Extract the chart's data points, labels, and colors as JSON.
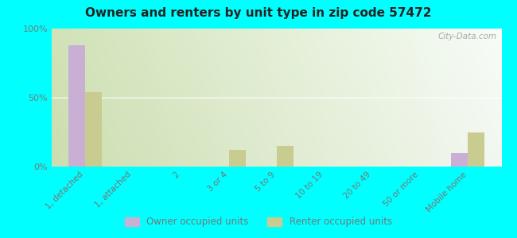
{
  "title": "Owners and renters by unit type in zip code 57472",
  "categories": [
    "1, detached",
    "1, attached",
    "2",
    "3 or 4",
    "5 to 9",
    "10 to 19",
    "20 to 49",
    "50 or more",
    "Mobile home"
  ],
  "owner_values": [
    88,
    0,
    0,
    0,
    0,
    0,
    0,
    0,
    10
  ],
  "renter_values": [
    54,
    0,
    0,
    12,
    15,
    0,
    0,
    0,
    25
  ],
  "owner_color": "#c9afd4",
  "renter_color": "#c8cc90",
  "background_color": "#00ffff",
  "ylim": [
    0,
    100
  ],
  "yticks": [
    0,
    50,
    100
  ],
  "ytick_labels": [
    "0%",
    "50%",
    "100%"
  ],
  "bar_width": 0.35,
  "legend_owner": "Owner occupied units",
  "legend_renter": "Renter occupied units",
  "watermark": "City-Data.com",
  "grid_color": "#ccddaa",
  "tick_color": "#777777"
}
